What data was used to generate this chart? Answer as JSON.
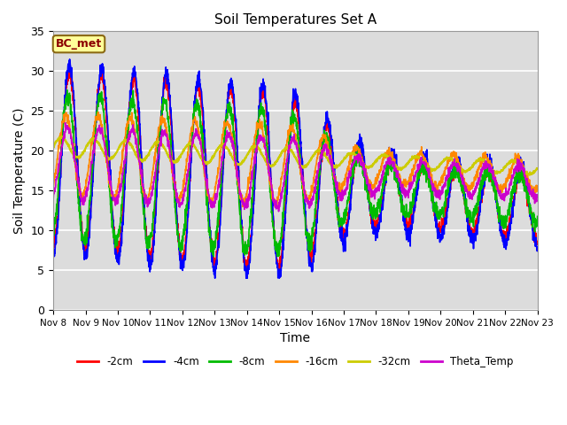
{
  "title": "Soil Temperatures Set A",
  "xlabel": "Time",
  "ylabel": "Soil Temperature (C)",
  "ylim": [
    0,
    35
  ],
  "annotation_text": "BC_met",
  "annotation_facecolor": "#FFFF99",
  "annotation_edgecolor": "#8B6914",
  "annotation_textcolor": "#8B0000",
  "bg_color": "#DCDCDC",
  "series_order": [
    "-2cm",
    "-4cm",
    "-8cm",
    "-16cm",
    "-32cm",
    "Theta_Temp"
  ],
  "series_colors": [
    "#FF0000",
    "#0000FF",
    "#00BB00",
    "#FF8800",
    "#CCCC00",
    "#CC00CC"
  ],
  "series_lw": [
    1.2,
    1.2,
    1.2,
    1.2,
    1.5,
    1.2
  ],
  "xtick_labels": [
    "Nov 8",
    "Nov 9",
    "Nov 10",
    "Nov 11",
    "Nov 12",
    "Nov 13",
    "Nov 14",
    "Nov 15",
    "Nov 16",
    "Nov 17",
    "Nov 18",
    "Nov 19",
    "Nov 20",
    "Nov 21",
    "Nov 22",
    "Nov 23"
  ],
  "ytick_labels": [
    "0",
    "5",
    "10",
    "15",
    "20",
    "25",
    "30",
    "35"
  ],
  "ytick_positions": [
    0,
    5,
    10,
    15,
    20,
    25,
    30,
    35
  ]
}
